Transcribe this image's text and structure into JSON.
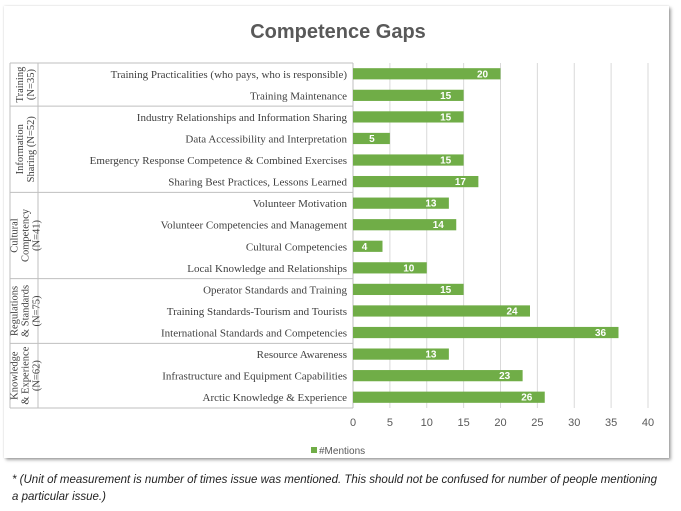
{
  "colors": {
    "bar": "#70AD47",
    "grid": "#D9D9D9",
    "axis": "#BFBFBF"
  },
  "footnote": "* (Unit of measurement is number of times issue was mentioned.  This should not be confused for number of people mentioning a particular issue.)",
  "chart_data": {
    "type": "bar",
    "orientation": "horizontal",
    "title": "Competence Gaps",
    "xlim": [
      0,
      40
    ],
    "x_ticks": [
      "0",
      "5",
      "10",
      "15",
      "20",
      "25",
      "30",
      "35",
      "40"
    ],
    "grid": true,
    "legend_position": "bottom",
    "series": [
      {
        "name": "#Mentions",
        "values": [
          20,
          15,
          15,
          5,
          15,
          17,
          13,
          14,
          4,
          10,
          15,
          24,
          36,
          13,
          23,
          26
        ]
      }
    ],
    "categories": [
      "Training Practicalities (who pays, who is responsible)",
      "Training Maintenance",
      "Industry Relationships and Information Sharing",
      "Data Accessibility and Interpretation",
      "Emergency Response Competence & Combined Exercises",
      "Sharing Best Practices, Lessons Learned",
      "Volunteer Motivation",
      "Volunteer Competencies and Management",
      "Cultural Competencies",
      "Local Knowledge and Relationships",
      "Operator Standards and Training",
      "Training Standards-Tourism and Tourists",
      "International Standards and Competencies",
      "Resource Awareness",
      "Infrastructure and Equipment Capabilities",
      "Arctic Knowledge & Experience"
    ],
    "groups": [
      {
        "label_lines": [
          "Training",
          "(N=35)"
        ],
        "count": 2
      },
      {
        "label_lines": [
          "Information",
          "Sharing (N=52)"
        ],
        "count": 4
      },
      {
        "label_lines": [
          "Cultural",
          "Competency",
          "(N=41)"
        ],
        "count": 4
      },
      {
        "label_lines": [
          "Regulations",
          "& Standards",
          "(N=75)"
        ],
        "count": 3
      },
      {
        "label_lines": [
          "Knowledge",
          "& Experience",
          "(N=62)"
        ],
        "count": 3
      }
    ]
  }
}
